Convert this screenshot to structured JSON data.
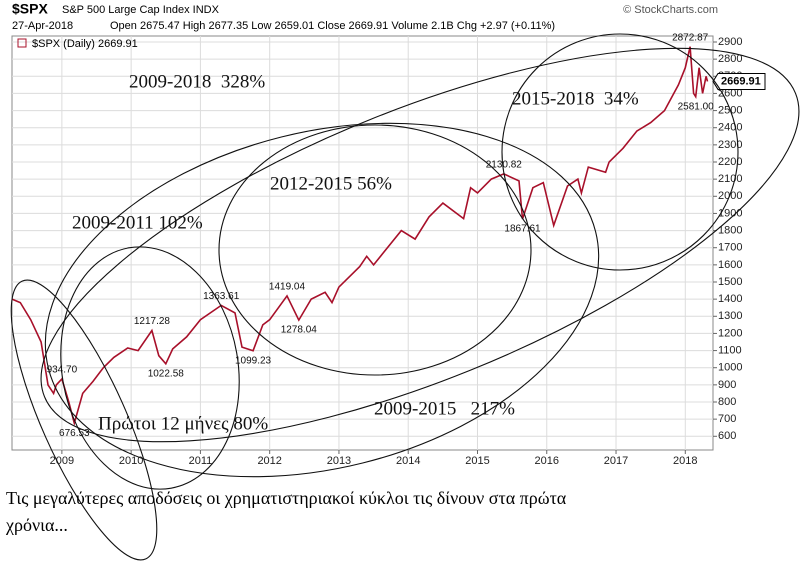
{
  "chart_data": {
    "type": "line",
    "symbol": "$SPX",
    "name": "S&P 500 Large Cap Index INDX",
    "source": "© StockCharts.com",
    "date": "27-Apr-2018",
    "quote": "Open 2675.47  High 2677.35  Low 2659.01  Close 2669.91  Volume 2.1B  Chg +2.97 (+0.11%)",
    "legend": "$SPX (Daily) 2669.91",
    "last_label": "2669.91",
    "x": [
      2008.28,
      2008.4,
      2008.55,
      2008.7,
      2008.8,
      2008.88,
      2008.92,
      2009.0,
      2009.1,
      2009.18,
      2009.3,
      2009.45,
      2009.6,
      2009.75,
      2009.95,
      2010.1,
      2010.3,
      2010.4,
      2010.5,
      2010.6,
      2010.8,
      2011.0,
      2011.3,
      2011.5,
      2011.6,
      2011.76,
      2011.9,
      2012.0,
      2012.25,
      2012.42,
      2012.6,
      2012.8,
      2012.9,
      2013.0,
      2013.3,
      2013.4,
      2013.5,
      2013.7,
      2013.9,
      2014.1,
      2014.3,
      2014.5,
      2014.8,
      2014.9,
      2015.0,
      2015.2,
      2015.38,
      2015.6,
      2015.65,
      2015.8,
      2015.95,
      2016.1,
      2016.3,
      2016.45,
      2016.5,
      2016.6,
      2016.85,
      2016.9,
      2017.1,
      2017.3,
      2017.5,
      2017.7,
      2017.9,
      2018.0,
      2018.07,
      2018.12,
      2018.15,
      2018.2,
      2018.25,
      2018.3,
      2018.32
    ],
    "series": [
      {
        "name": "$SPX",
        "color": "#a8102a",
        "values": [
          1400,
          1380,
          1280,
          1150,
          900,
          850,
          900,
          934.7,
          800,
          676.53,
          850,
          920,
          1000,
          1060,
          1115,
          1100,
          1217.28,
          1070,
          1022.58,
          1110,
          1180,
          1280,
          1363.61,
          1320,
          1120,
          1099.23,
          1250,
          1280,
          1419.04,
          1278.04,
          1400,
          1440,
          1380,
          1470,
          1590,
          1650,
          1600,
          1700,
          1800,
          1750,
          1880,
          1960,
          1870,
          2050,
          2020,
          2100,
          2130.82,
          2090,
          1867.61,
          2050,
          2080,
          1830,
          2060,
          2100,
          2020,
          2170,
          2140,
          2200,
          2280,
          2380,
          2430,
          2500,
          2650,
          2750,
          2872.87,
          2600,
          2581,
          2750,
          2600,
          2700,
          2669.91
        ],
        "value_labels": [
          null,
          null,
          null,
          null,
          null,
          null,
          null,
          "934.70",
          null,
          "676.53",
          null,
          null,
          null,
          null,
          null,
          null,
          "1217.28",
          null,
          "1022.58",
          null,
          null,
          null,
          "1363.61",
          null,
          null,
          "1099.23",
          null,
          null,
          "1419.04",
          "1278.04",
          null,
          null,
          null,
          null,
          null,
          null,
          null,
          null,
          null,
          null,
          null,
          null,
          null,
          null,
          null,
          null,
          "2130.82",
          null,
          "1867.61",
          null,
          null,
          null,
          null,
          null,
          null,
          null,
          null,
          null,
          null,
          null,
          null,
          null,
          null,
          null,
          "2872.87",
          null,
          "2581.00",
          null,
          null,
          null,
          null
        ]
      }
    ],
    "xlim": [
      2008.28,
      2018.4
    ],
    "xticks": [
      2009,
      2010,
      2011,
      2012,
      2013,
      2014,
      2015,
      2016,
      2017,
      2018
    ],
    "ylim": [
      520,
      2935
    ],
    "yticks": [
      600,
      700,
      800,
      900,
      1000,
      1100,
      1200,
      1300,
      1400,
      1500,
      1600,
      1700,
      1800,
      1900,
      2000,
      2100,
      2200,
      2300,
      2400,
      2500,
      2600,
      2700,
      2800,
      2900
    ],
    "grid": true,
    "annotations": [
      "2009-2018  328%",
      "2015-2018  34%",
      "2012-2015 56%",
      "2009-2011 102%",
      "2009-2015   217%",
      "Πρώτοι 12 μήνες 80%"
    ]
  },
  "caption": [
    "Τις μεγαλύτερες αποδόσεις οι χρηματιστηριακοί κύκλοι τις δίνουν στα πρώτα",
    "χρόνια..."
  ]
}
